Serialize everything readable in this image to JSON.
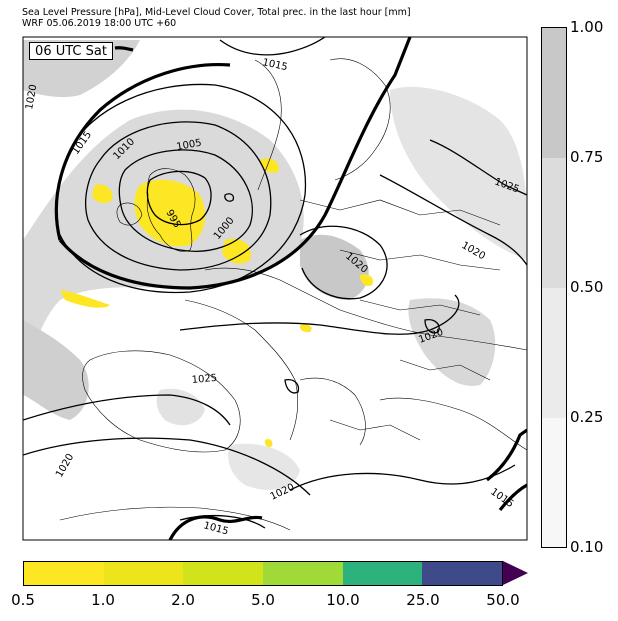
{
  "header": {
    "title_line1": "Sea Level Pressure [hPa], Mid-Level Cloud Cover, Total prec. in the last hour [mm]",
    "title_line2": "WRF 05.06.2019 18:00 UTC +60"
  },
  "valid_label": "06 UTC Sat",
  "isobar_labels": [
    "1015",
    "1020",
    "1015",
    "1010",
    "1005",
    "995",
    "1000",
    "1020",
    "1025",
    "1020",
    "1020",
    "1025",
    "1020",
    "1020",
    "1015",
    "1015"
  ],
  "cloud_colorbar": {
    "labels": [
      "1.00",
      "0.75",
      "0.50",
      "0.25",
      "0.10"
    ],
    "colors": [
      "#c8c8c8",
      "#dcdcdc",
      "#ebebeb",
      "#f7f7f7"
    ]
  },
  "precip_colorbar": {
    "labels": [
      "0.5",
      "1.0",
      "2.0",
      "5.0",
      "10.0",
      "25.0",
      "50.0"
    ],
    "colors": [
      "#fde725",
      "#ece51b",
      "#d2e21b",
      "#a0da39",
      "#2db27d",
      "#3f4a8a",
      "#440154"
    ]
  }
}
